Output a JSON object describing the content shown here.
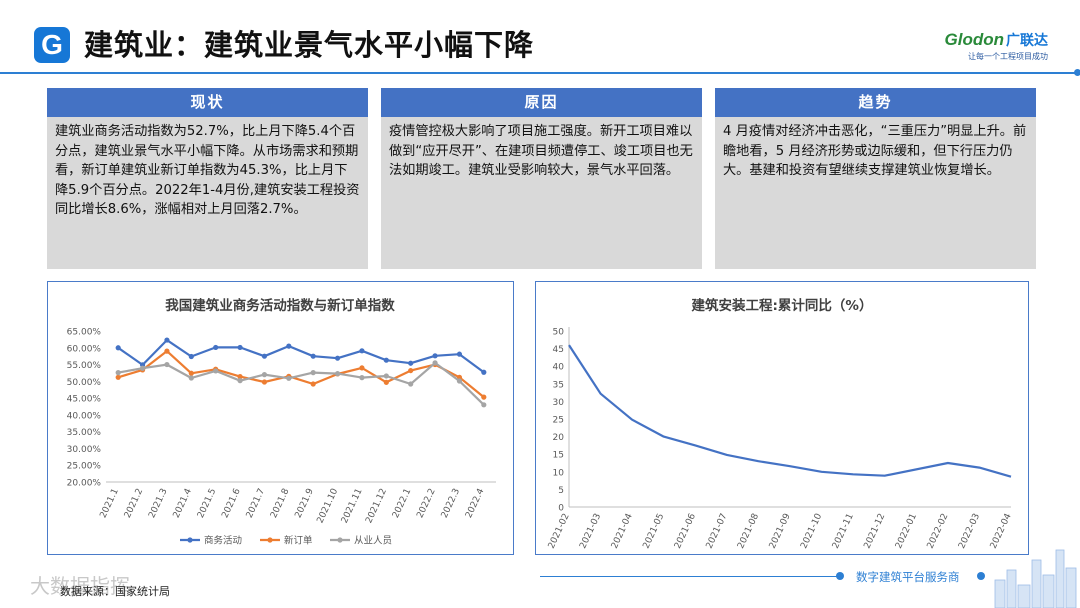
{
  "header": {
    "logo_letter": "G",
    "title": "建筑业：建筑业景气水平小幅下降",
    "brand_name": "Glodon",
    "brand_cn": "广联达",
    "brand_slogan": "让每一个工程项目成功"
  },
  "boxes": [
    {
      "title": "现状",
      "text": "建筑业商务活动指数为52.7%，比上月下降5.4个百分点，建筑业景气水平小幅下降。从市场需求和预期看，新订单建筑业新订单指数为45.3%，比上月下降5.9个百分点。2022年1-4月份,建筑安装工程投资同比增长8.6%，涨幅相对上月回落2.7%。"
    },
    {
      "title": "原因",
      "text": "疫情管控极大影响了项目施工强度。新开工项目难以做到“应开尽开”、在建项目频遭停工、竣工项目也无法如期竣工。建筑业受影响较大，景气水平回落。"
    },
    {
      "title": "趋势",
      "text": "4 月疫情对经济冲击恶化，“三重压力”明显上升。前瞻地看，5 月经济形势或边际缓和，但下行压力仍大。基建和投资有望继续支撑建筑业恢复增长。"
    }
  ],
  "chart_data": [
    {
      "type": "line",
      "title": "我国建筑业商务活动指数与新订单指数",
      "categories": [
        "2021.1",
        "2021.2",
        "2021.3",
        "2021.4",
        "2021.5",
        "2021.6",
        "2021.7",
        "2021.8",
        "2021.9",
        "2021.10",
        "2021.11",
        "2021.12",
        "2022.1",
        "2022.2",
        "2022.3",
        "2022.4"
      ],
      "yticks": [
        "65.00%",
        "60.00%",
        "55.00%",
        "50.00%",
        "45.00%",
        "40.00%",
        "35.00%",
        "30.00%",
        "25.00%",
        "20.00%"
      ],
      "ylim": [
        20,
        65
      ],
      "series": [
        {
          "name": "商务活动",
          "color": "#4472c4",
          "values": [
            60.0,
            54.9,
            62.3,
            57.4,
            60.1,
            60.1,
            57.5,
            60.5,
            57.5,
            56.9,
            59.1,
            56.3,
            55.4,
            57.6,
            58.1,
            52.7
          ]
        },
        {
          "name": "新订单",
          "color": "#ed7d31",
          "values": [
            51.2,
            53.4,
            59.0,
            52.4,
            53.6,
            51.4,
            49.8,
            51.5,
            49.2,
            52.2,
            54.0,
            49.7,
            53.2,
            55.0,
            51.2,
            45.3
          ]
        },
        {
          "name": "从业人员",
          "color": "#a5a5a5",
          "values": [
            52.6,
            53.9,
            55.0,
            51.0,
            53.1,
            50.2,
            52.0,
            50.9,
            52.6,
            52.3,
            51.1,
            51.6,
            49.2,
            55.5,
            50.1,
            43.0
          ]
        }
      ]
    },
    {
      "type": "line",
      "title": "建筑安装工程:累计同比（%）",
      "categories": [
        "2021-02",
        "2021-03",
        "2021-04",
        "2021-05",
        "2021-06",
        "2021-07",
        "2021-08",
        "2021-09",
        "2021-10",
        "2021-11",
        "2021-12",
        "2022-01",
        "2022-02",
        "2022-03",
        "2022-04"
      ],
      "yticks": [
        "50",
        "45",
        "40",
        "35",
        "30",
        "25",
        "20",
        "15",
        "10",
        "5",
        "0"
      ],
      "ylim": [
        0,
        50
      ],
      "series": [
        {
          "name": "建筑安装工程累计同比",
          "color": "#4472c4",
          "values": [
            46.0,
            32.2,
            24.8,
            20.0,
            17.5,
            14.8,
            13.0,
            11.6,
            10.0,
            9.3,
            8.9,
            null,
            12.5,
            11.2,
            8.6
          ]
        }
      ]
    }
  ],
  "footer": {
    "source": "数据来源：国家统计局",
    "watermark": "大数据指挥",
    "platform": "数字建筑平台服务商"
  }
}
